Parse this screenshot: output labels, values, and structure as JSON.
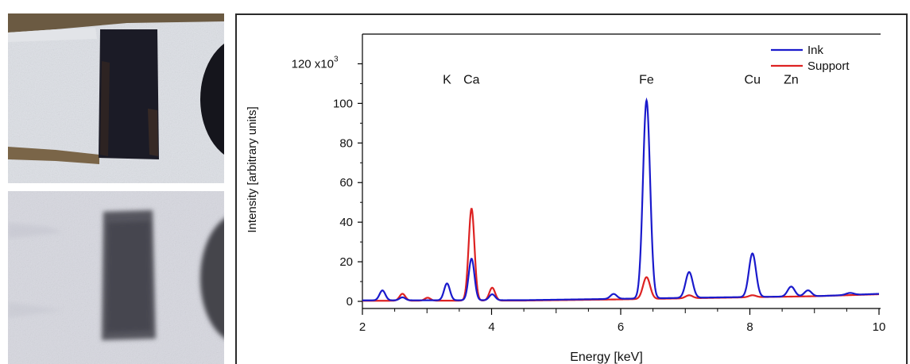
{
  "photos": [
    {
      "label": "ink-sample-visible-photo"
    },
    {
      "label": "ink-sample-infrared-photo"
    }
  ],
  "chart_data": {
    "type": "line",
    "title": "",
    "xlabel": "Energy [keV]",
    "ylabel": "Intensity [arbitrary units]",
    "xlim": [
      2,
      10
    ],
    "ylim": [
      -2,
      135
    ],
    "x_ticks": [
      2,
      4,
      6,
      8,
      10
    ],
    "y_ticks": [
      0,
      20,
      40,
      60,
      80,
      100,
      120
    ],
    "y_top_tick_label": "120 x10",
    "y_exponent": "3",
    "grid": false,
    "legend_position": "top-right",
    "element_labels": [
      {
        "text": "K",
        "energy": 3.31
      },
      {
        "text": "Ca",
        "energy": 3.69
      },
      {
        "text": "Fe",
        "energy": 6.4
      },
      {
        "text": "Cu",
        "energy": 8.04
      },
      {
        "text": "Zn",
        "energy": 8.64
      }
    ],
    "series": [
      {
        "name": "Ink",
        "color": "#1a1acc",
        "baseline": [
          [
            2.0,
            0.5
          ],
          [
            4.5,
            0.6
          ],
          [
            6.0,
            1.3
          ],
          [
            7.5,
            2.0
          ],
          [
            9.0,
            2.6
          ],
          [
            10.0,
            3.8
          ]
        ],
        "peaks": [
          {
            "center": 2.31,
            "height": 5,
            "sigma": 0.045
          },
          {
            "center": 2.62,
            "height": 1.5,
            "sigma": 0.045
          },
          {
            "center": 3.31,
            "height": 8.5,
            "sigma": 0.045
          },
          {
            "center": 3.69,
            "height": 21,
            "sigma": 0.045
          },
          {
            "center": 4.01,
            "height": 3,
            "sigma": 0.045
          },
          {
            "center": 5.89,
            "height": 2.5,
            "sigma": 0.05
          },
          {
            "center": 6.4,
            "height": 100,
            "sigma": 0.055
          },
          {
            "center": 7.06,
            "height": 13,
            "sigma": 0.055
          },
          {
            "center": 8.04,
            "height": 22,
            "sigma": 0.055
          },
          {
            "center": 8.64,
            "height": 5,
            "sigma": 0.055
          },
          {
            "center": 8.9,
            "height": 3,
            "sigma": 0.055
          },
          {
            "center": 9.55,
            "height": 1,
            "sigma": 0.06
          }
        ]
      },
      {
        "name": "Support",
        "color": "#dd2222",
        "baseline": [
          [
            2.0,
            0.3
          ],
          [
            4.5,
            0.4
          ],
          [
            6.0,
            1.0
          ],
          [
            7.5,
            1.8
          ],
          [
            9.0,
            2.6
          ],
          [
            10.0,
            3.6
          ]
        ],
        "peaks": [
          {
            "center": 2.62,
            "height": 3.5,
            "sigma": 0.045
          },
          {
            "center": 3.01,
            "height": 1.5,
            "sigma": 0.045
          },
          {
            "center": 3.69,
            "height": 46.5,
            "sigma": 0.045
          },
          {
            "center": 4.01,
            "height": 6.5,
            "sigma": 0.045
          },
          {
            "center": 6.4,
            "height": 11,
            "sigma": 0.055
          },
          {
            "center": 7.06,
            "height": 1.5,
            "sigma": 0.055
          },
          {
            "center": 8.04,
            "height": 1,
            "sigma": 0.055
          }
        ]
      }
    ]
  }
}
